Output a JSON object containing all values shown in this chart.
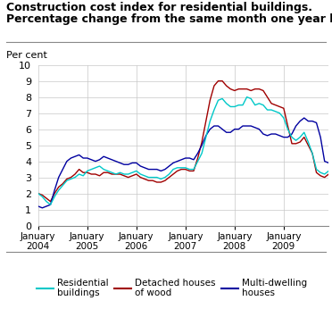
{
  "title_line1": "Construction cost index for residential buildings.",
  "title_line2": "Percentage change from the same month one year before",
  "ylabel": "Per cent",
  "ylim": [
    0,
    10
  ],
  "yticks": [
    0,
    1,
    2,
    3,
    4,
    5,
    6,
    7,
    8,
    9,
    10
  ],
  "colors": {
    "residential": "#00C8C8",
    "detached": "#A00000",
    "multidwelling": "#0000A0"
  },
  "residential": [
    2.0,
    1.8,
    1.5,
    1.3,
    1.8,
    2.2,
    2.5,
    2.8,
    2.9,
    3.0,
    3.2,
    3.1,
    3.4,
    3.5,
    3.6,
    3.7,
    3.5,
    3.4,
    3.3,
    3.2,
    3.3,
    3.2,
    3.2,
    3.3,
    3.4,
    3.2,
    3.1,
    3.0,
    3.0,
    3.0,
    2.9,
    3.0,
    3.2,
    3.5,
    3.6,
    3.6,
    3.6,
    3.5,
    3.5,
    4.0,
    4.5,
    5.5,
    6.5,
    7.2,
    7.8,
    7.9,
    7.6,
    7.4,
    7.4,
    7.5,
    7.5,
    8.0,
    7.9,
    7.5,
    7.6,
    7.5,
    7.2,
    7.2,
    7.1,
    7.0,
    6.7,
    6.0,
    5.5,
    5.3,
    5.5,
    5.8,
    5.2,
    4.5,
    3.5,
    3.3,
    3.2,
    3.4
  ],
  "detached": [
    2.0,
    1.9,
    1.7,
    1.5,
    2.0,
    2.4,
    2.6,
    2.9,
    3.0,
    3.2,
    3.5,
    3.3,
    3.3,
    3.2,
    3.2,
    3.1,
    3.3,
    3.3,
    3.2,
    3.2,
    3.2,
    3.1,
    3.0,
    3.1,
    3.2,
    3.0,
    2.9,
    2.8,
    2.8,
    2.7,
    2.7,
    2.8,
    3.0,
    3.2,
    3.4,
    3.5,
    3.5,
    3.4,
    3.4,
    4.2,
    5.2,
    6.5,
    7.8,
    8.7,
    9.0,
    9.0,
    8.7,
    8.5,
    8.4,
    8.5,
    8.5,
    8.5,
    8.4,
    8.5,
    8.5,
    8.4,
    8.0,
    7.6,
    7.5,
    7.4,
    7.3,
    6.2,
    5.1,
    5.1,
    5.2,
    5.5,
    5.0,
    4.5,
    3.3,
    3.1,
    3.0,
    3.2
  ],
  "multidwelling": [
    1.2,
    1.1,
    1.2,
    1.3,
    2.2,
    3.0,
    3.5,
    4.0,
    4.2,
    4.3,
    4.4,
    4.2,
    4.2,
    4.1,
    4.0,
    4.1,
    4.3,
    4.2,
    4.1,
    4.0,
    3.9,
    3.8,
    3.8,
    3.9,
    3.9,
    3.7,
    3.6,
    3.5,
    3.5,
    3.5,
    3.4,
    3.5,
    3.7,
    3.9,
    4.0,
    4.1,
    4.2,
    4.2,
    4.1,
    4.5,
    5.0,
    5.6,
    6.0,
    6.2,
    6.2,
    6.0,
    5.8,
    5.8,
    6.0,
    6.0,
    6.2,
    6.2,
    6.2,
    6.1,
    6.0,
    5.7,
    5.6,
    5.7,
    5.7,
    5.6,
    5.5,
    5.5,
    5.7,
    6.2,
    6.5,
    6.7,
    6.5,
    6.5,
    6.4,
    5.5,
    4.0,
    3.9
  ],
  "n_months": 72,
  "xtick_positions": [
    0,
    12,
    24,
    36,
    48,
    60
  ],
  "xtick_labels": [
    "January\n2004",
    "January\n2005",
    "January\n2006",
    "January\n2007",
    "January\n2008",
    "January\n2009"
  ],
  "bg_color": "#ffffff",
  "grid_color": "#c8c8c8"
}
